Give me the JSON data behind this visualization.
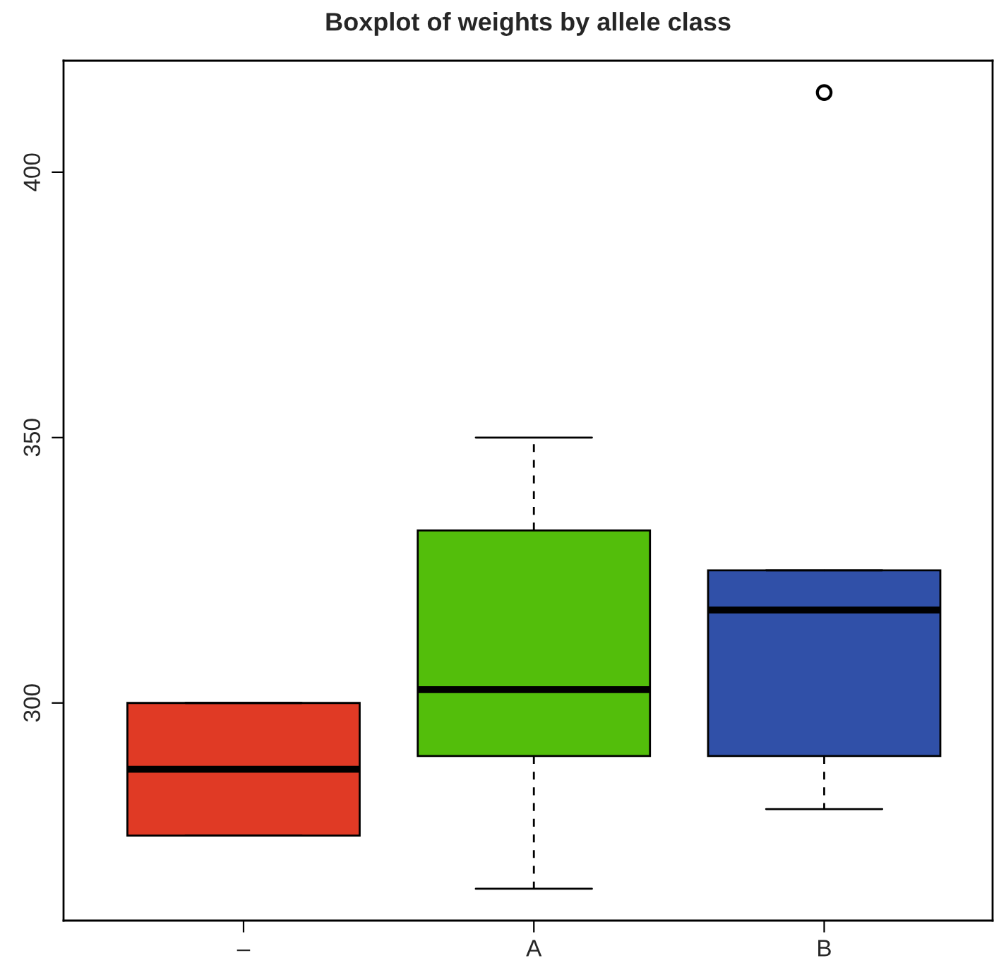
{
  "chart_data": {
    "type": "box",
    "title": "Boxplot of weights by allele class",
    "categories": [
      "–",
      "A",
      "B"
    ],
    "colors": [
      "#e03a25",
      "#53be0b",
      "#3050a8"
    ],
    "boxes": [
      {
        "low": 275,
        "q1": 275,
        "median": 287.5,
        "q3": 300,
        "high": 300
      },
      {
        "low": 265,
        "q1": 290,
        "median": 302.5,
        "q3": 332.5,
        "high": 350
      },
      {
        "low": 280,
        "q1": 290,
        "median": 317.5,
        "q3": 325,
        "high": 325,
        "outliers": [
          415
        ]
      }
    ],
    "ylim": [
      259,
      421
    ],
    "yticks": [
      300,
      350,
      400
    ],
    "grid": false
  }
}
